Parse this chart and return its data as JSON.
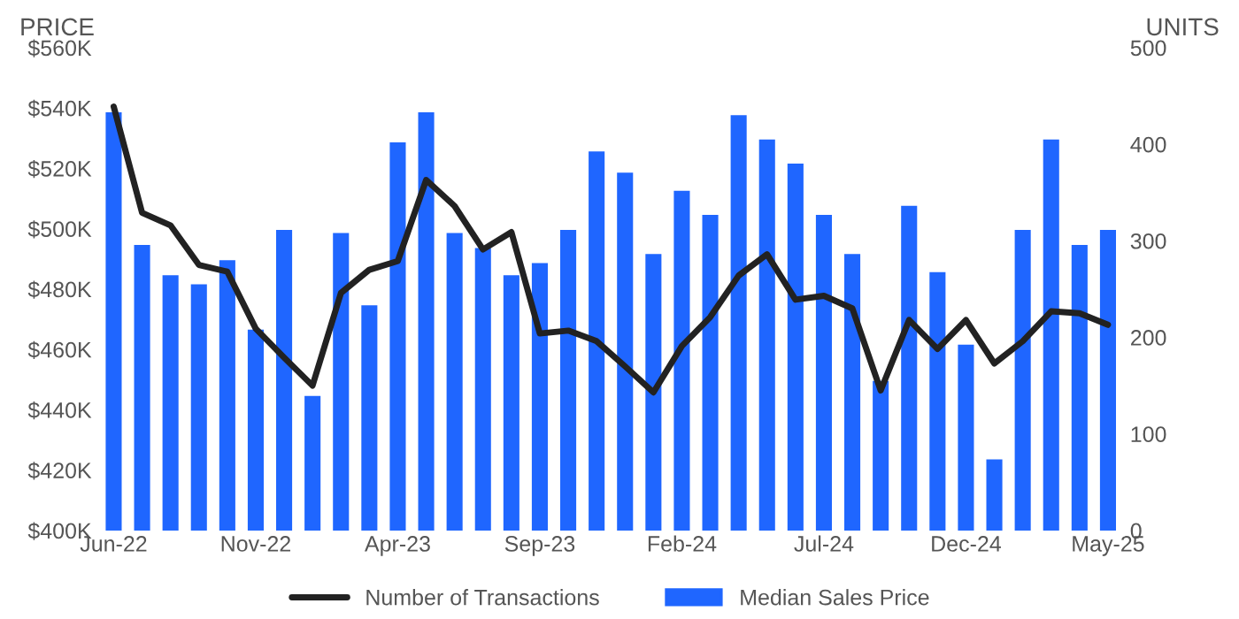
{
  "chart_data": {
    "type": "bar",
    "ylabel": "PRICE",
    "y2label": "UNITS",
    "categories": [
      "Jun-22",
      null,
      null,
      null,
      null,
      "Nov-22",
      null,
      null,
      null,
      null,
      "Apr-23",
      null,
      null,
      null,
      null,
      "Sep-23",
      null,
      null,
      null,
      null,
      "Feb-24",
      null,
      null,
      null,
      null,
      "Jul-24",
      null,
      null,
      null,
      null,
      "Dec-24",
      null,
      null,
      null,
      null,
      "May-25"
    ],
    "series": [
      {
        "name": "Number of Transactions",
        "type": "line",
        "axis": "y2",
        "color": "#222222",
        "values": [
          439,
          329,
          316,
          275,
          268,
          209,
          179,
          150,
          246,
          270,
          279,
          363,
          336,
          291,
          309,
          204,
          207,
          196,
          170,
          143,
          191,
          221,
          264,
          286,
          239,
          243,
          230,
          145,
          218,
          188,
          218,
          173,
          196,
          227,
          225,
          213
        ]
      },
      {
        "name": "Median Sales Price",
        "color": "#1f66ff",
        "values": [
          539000,
          495000,
          485000,
          482000,
          490000,
          467000,
          500000,
          445000,
          499000,
          475000,
          529000,
          539000,
          499000,
          494000,
          485000,
          489000,
          500000,
          526000,
          519000,
          492000,
          513000,
          505000,
          538000,
          530000,
          522000,
          505000,
          492000,
          450000,
          508000,
          486000,
          462000,
          424000,
          500000,
          530000,
          495000,
          500000
        ]
      }
    ],
    "ylim": [
      400000,
      560000
    ],
    "yticks": [
      {
        "value": 400000,
        "label": "$400K"
      },
      {
        "value": 420000,
        "label": "$420K"
      },
      {
        "value": 440000,
        "label": "$440K"
      },
      {
        "value": 460000,
        "label": "$460K"
      },
      {
        "value": 480000,
        "label": "$480K"
      },
      {
        "value": 500000,
        "label": "$500K"
      },
      {
        "value": 520000,
        "label": "$520K"
      },
      {
        "value": 540000,
        "label": "$540K"
      },
      {
        "value": 560000,
        "label": "$560K"
      }
    ],
    "y2lim": [
      0,
      500
    ],
    "y2ticks": [
      0,
      100,
      200,
      300,
      400,
      500
    ],
    "legend": "bottom",
    "grid": false
  }
}
